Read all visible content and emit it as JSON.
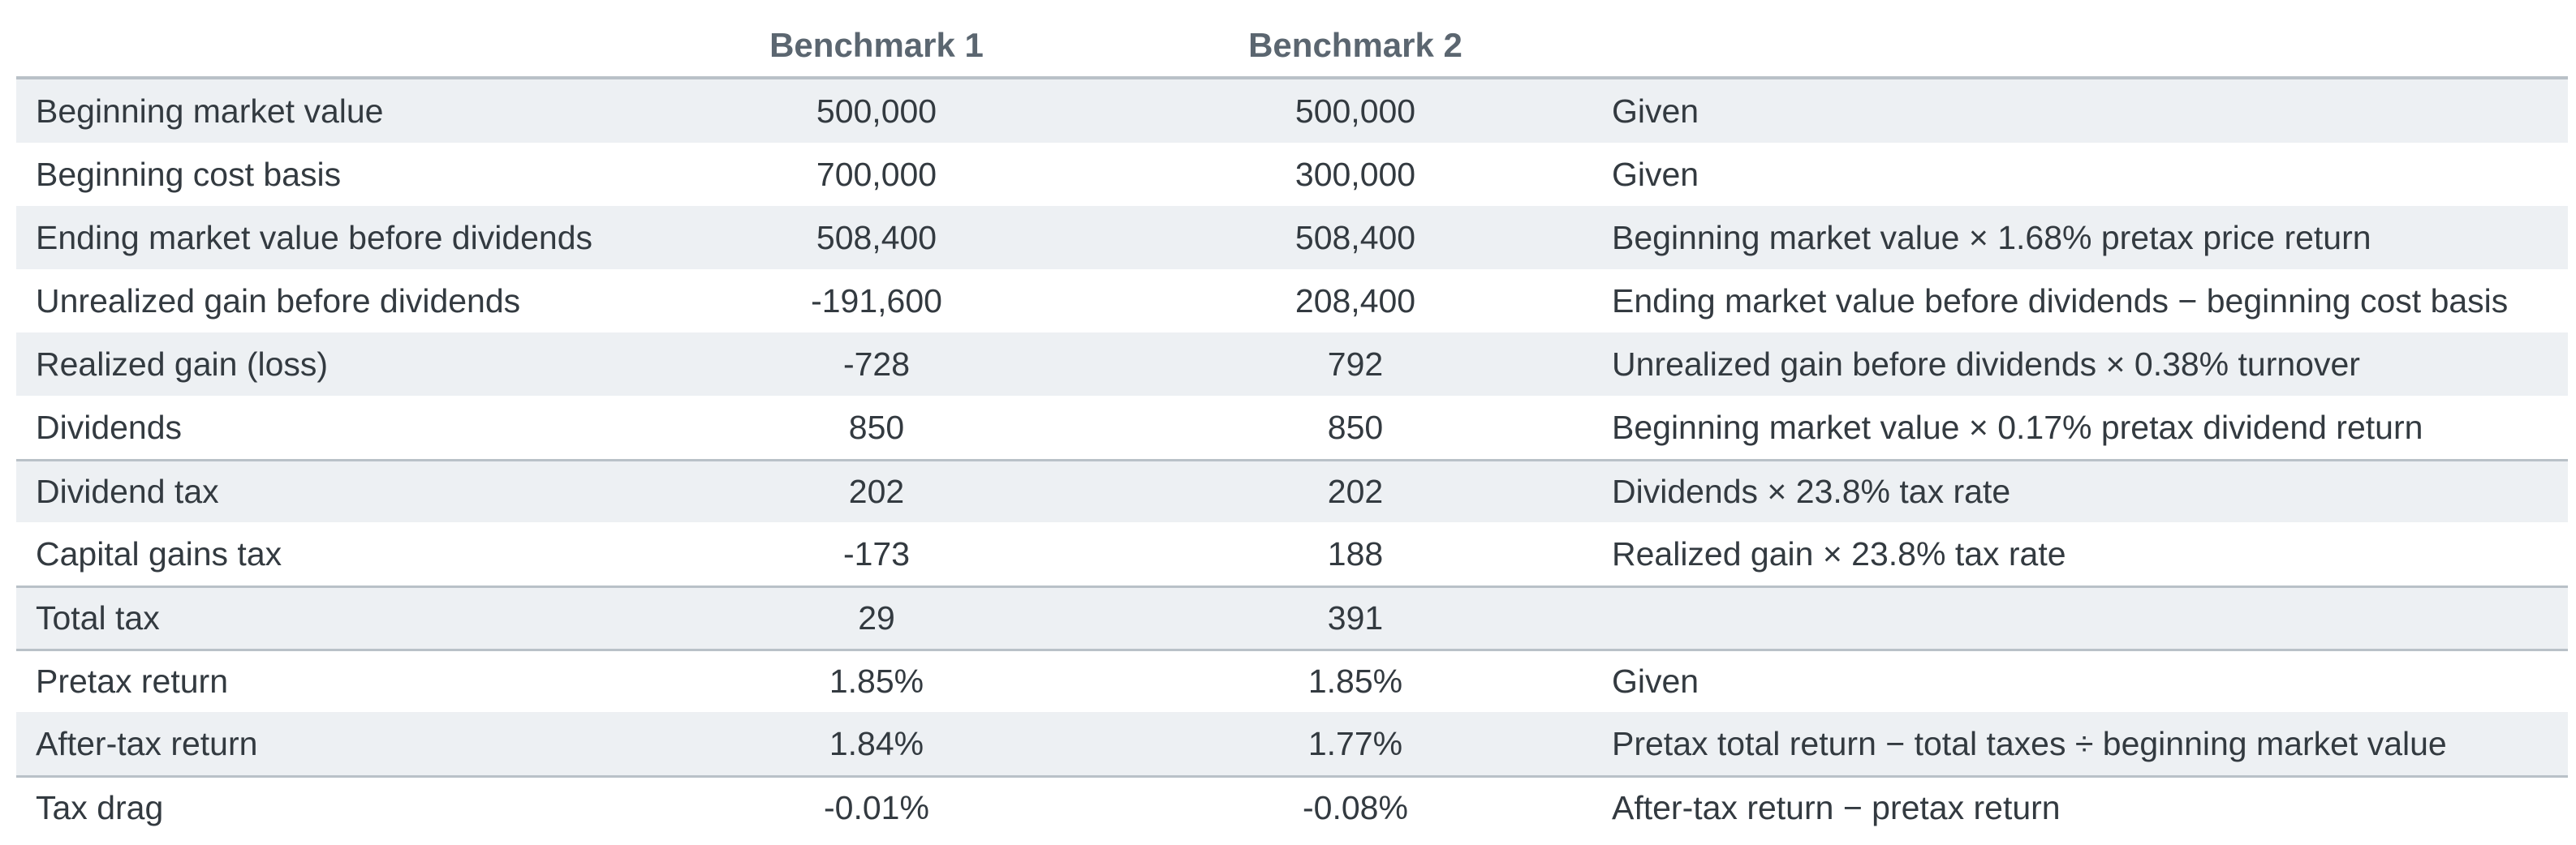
{
  "header": {
    "benchmark1": "Benchmark 1",
    "benchmark2": "Benchmark 2"
  },
  "rows": [
    {
      "label": "Beginning market value",
      "b1": "500,000",
      "b2": "500,000",
      "note": "Given"
    },
    {
      "label": "Beginning cost basis",
      "b1": "700,000",
      "b2": "300,000",
      "note": "Given"
    },
    {
      "label": "Ending market value before dividends",
      "b1": "508,400",
      "b2": "508,400",
      "note": "Beginning market value × 1.68% pretax price return"
    },
    {
      "label": "Unrealized gain before dividends",
      "b1": "-191,600",
      "b2": "208,400",
      "note": "Ending market value before dividends − beginning cost basis"
    },
    {
      "label": "Realized gain (loss)",
      "b1": "-728",
      "b2": "792",
      "note": "Unrealized gain before dividends × 0.38% turnover"
    },
    {
      "label": "Dividends",
      "b1": "850",
      "b2": "850",
      "note": "Beginning market value × 0.17% pretax dividend return"
    },
    {
      "label": "Dividend tax",
      "b1": "202",
      "b2": "202",
      "note": "Dividends × 23.8% tax rate"
    },
    {
      "label": "Capital gains tax",
      "b1": "-173",
      "b2": "188",
      "note": "Realized gain × 23.8% tax rate"
    },
    {
      "label": "Total tax",
      "b1": "29",
      "b2": "391",
      "note": ""
    },
    {
      "label": "Pretax return",
      "b1": "1.85%",
      "b2": "1.85%",
      "note": "Given"
    },
    {
      "label": "After-tax return",
      "b1": "1.84%",
      "b2": "1.77%",
      "note": "Pretax total return − total taxes ÷ beginning market value"
    },
    {
      "label": "Tax drag",
      "b1": "-0.01%",
      "b2": "-0.08%",
      "note": "After-tax return − pretax return"
    }
  ]
}
